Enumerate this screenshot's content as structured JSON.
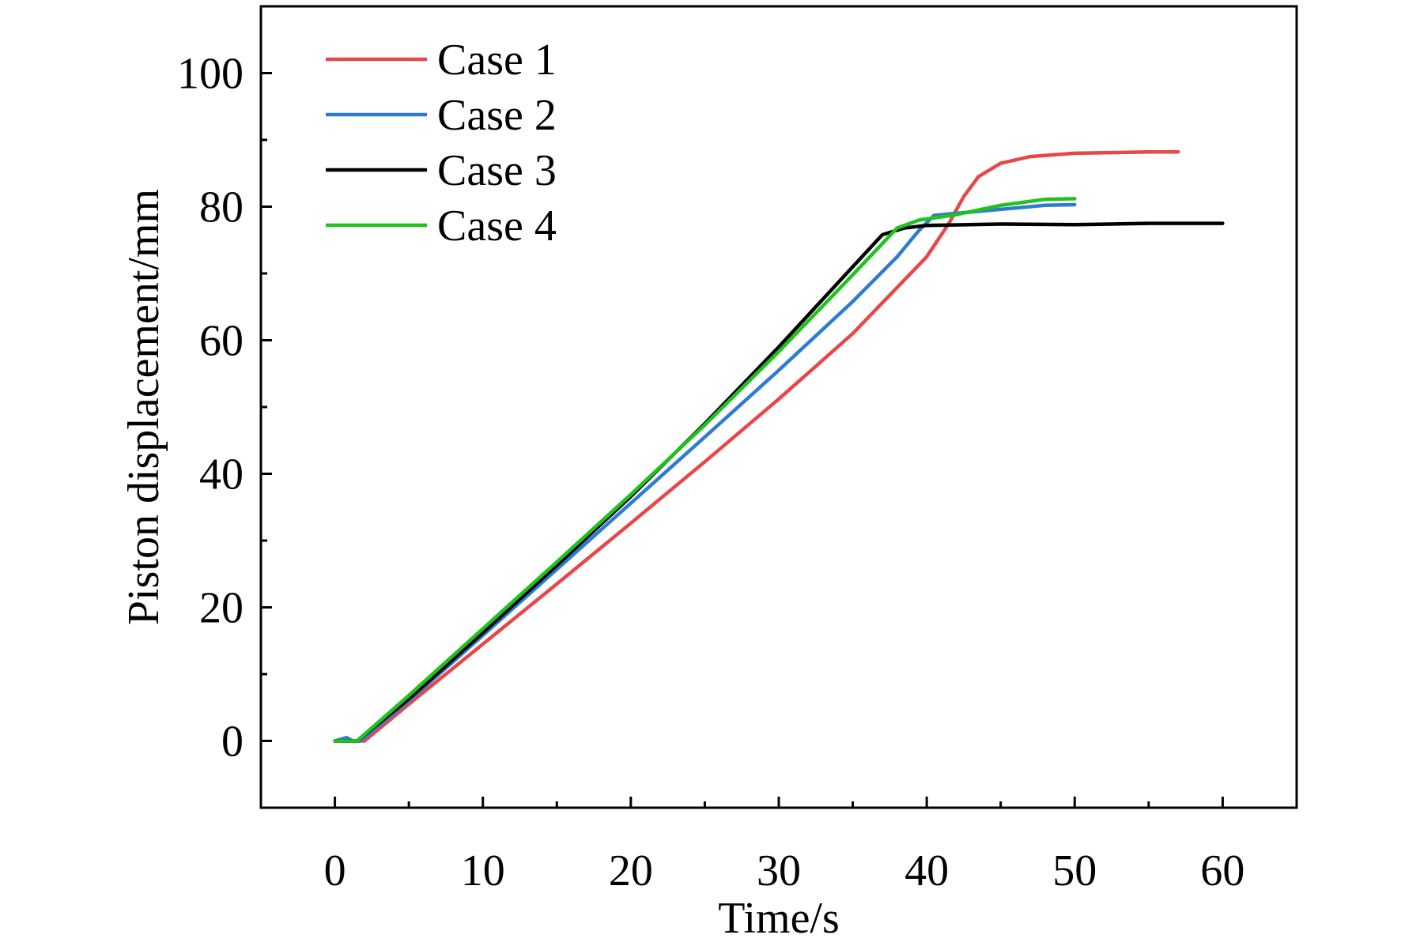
{
  "chart_data": {
    "type": "line",
    "title": "",
    "xlabel": "Time/s",
    "ylabel": "Piston displacement/mm",
    "xlim": [
      -5,
      65
    ],
    "ylim": [
      -10,
      110
    ],
    "x_ticks": [
      0,
      10,
      20,
      30,
      40,
      50,
      60
    ],
    "y_ticks": [
      0,
      20,
      40,
      60,
      80,
      100
    ],
    "grid": false,
    "legend_position": "top-left",
    "series": [
      {
        "name": "Case 1",
        "color": "#e8474a",
        "points": [
          [
            0,
            0
          ],
          [
            2,
            0
          ],
          [
            5,
            5.5
          ],
          [
            10,
            14.5
          ],
          [
            15,
            23.5
          ],
          [
            20,
            32.6
          ],
          [
            25,
            41.8
          ],
          [
            30,
            51.2
          ],
          [
            35,
            61.0
          ],
          [
            40,
            72.5
          ],
          [
            41.5,
            77.5
          ],
          [
            42.5,
            81.5
          ],
          [
            43.5,
            84.5
          ],
          [
            45,
            86.5
          ],
          [
            47,
            87.5
          ],
          [
            50,
            88.0
          ],
          [
            55,
            88.2
          ],
          [
            57,
            88.2
          ]
        ]
      },
      {
        "name": "Case 2",
        "color": "#2f7bd4",
        "points": [
          [
            0,
            0
          ],
          [
            0.8,
            0.5
          ],
          [
            1.2,
            0
          ],
          [
            1.7,
            0
          ],
          [
            5,
            6.0
          ],
          [
            10,
            15.8
          ],
          [
            15,
            25.7
          ],
          [
            20,
            35.6
          ],
          [
            25,
            45.5
          ],
          [
            30,
            55.5
          ],
          [
            35,
            65.8
          ],
          [
            38,
            72.5
          ],
          [
            39.5,
            76.5
          ],
          [
            40.5,
            78.7
          ],
          [
            42,
            79.0
          ],
          [
            45,
            79.6
          ],
          [
            48,
            80.2
          ],
          [
            50,
            80.3
          ]
        ]
      },
      {
        "name": "Case 3",
        "color": "#000000",
        "points": [
          [
            0,
            0
          ],
          [
            1.5,
            0
          ],
          [
            5,
            6.3
          ],
          [
            10,
            16.2
          ],
          [
            15,
            26.3
          ],
          [
            20,
            36.6
          ],
          [
            25,
            47.5
          ],
          [
            30,
            59.0
          ],
          [
            35,
            71.0
          ],
          [
            37,
            75.8
          ],
          [
            38.5,
            76.8
          ],
          [
            40,
            77.2
          ],
          [
            45,
            77.4
          ],
          [
            50,
            77.3
          ],
          [
            55,
            77.5
          ],
          [
            60,
            77.5
          ]
        ]
      },
      {
        "name": "Case 4",
        "color": "#1ec31e",
        "points": [
          [
            0,
            0
          ],
          [
            1.5,
            0
          ],
          [
            5,
            6.8
          ],
          [
            10,
            16.8
          ],
          [
            15,
            26.8
          ],
          [
            20,
            36.9
          ],
          [
            25,
            47.3
          ],
          [
            30,
            58.3
          ],
          [
            35,
            69.8
          ],
          [
            38,
            76.8
          ],
          [
            39.5,
            78.0
          ],
          [
            42,
            78.8
          ],
          [
            45,
            80.2
          ],
          [
            48,
            81.1
          ],
          [
            50,
            81.2
          ]
        ]
      }
    ]
  }
}
